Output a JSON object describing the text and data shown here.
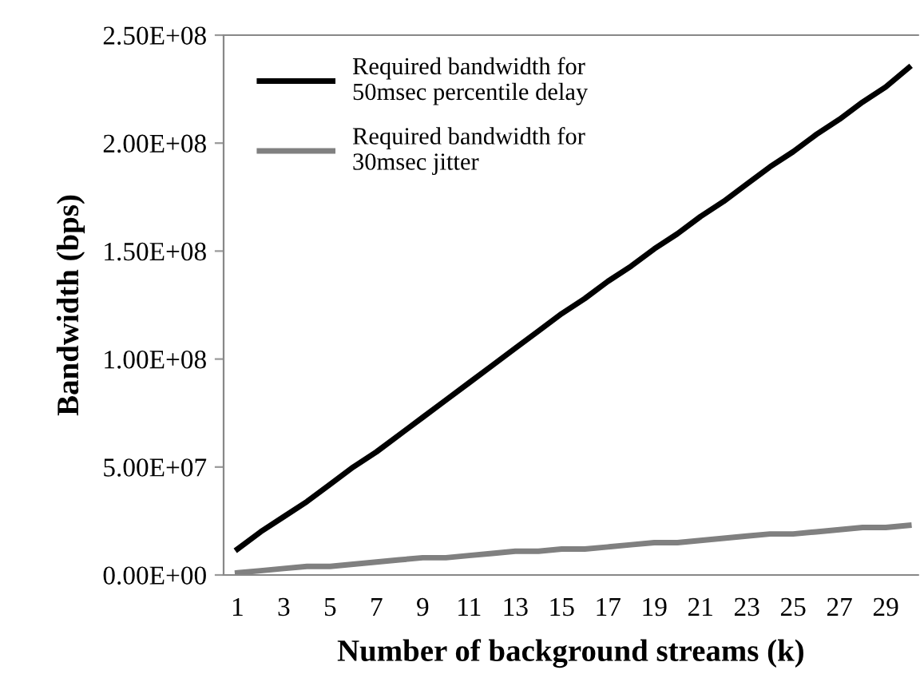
{
  "chart_data": {
    "type": "line",
    "xlabel": "Number of background streams (k)",
    "ylabel": "Bandwidth (bps)",
    "categories": [
      "1",
      null,
      "3",
      null,
      "5",
      null,
      "7",
      null,
      "9",
      null,
      "11",
      null,
      "13",
      null,
      "15",
      null,
      "17",
      null,
      "19",
      null,
      "21",
      null,
      "23",
      null,
      "25",
      null,
      "27",
      null,
      "29",
      null
    ],
    "series": [
      {
        "name": "Required bandwidth for\n50msec percentile delay",
        "color": "#000000",
        "values": [
          12000000,
          20000000,
          27000000,
          34000000,
          42000000,
          50000000,
          57000000,
          65000000,
          73000000,
          81000000,
          89000000,
          97000000,
          105000000,
          113000000,
          121000000,
          128000000,
          136000000,
          143000000,
          151000000,
          158000000,
          166000000,
          173000000,
          181000000,
          189000000,
          196000000,
          204000000,
          211000000,
          219000000,
          226000000,
          235000000
        ]
      },
      {
        "name": "Required bandwidth for\n30msec jitter",
        "color": "#808080",
        "values": [
          1000000,
          2000000,
          3000000,
          4000000,
          4000000,
          5000000,
          6000000,
          7000000,
          8000000,
          8000000,
          9000000,
          10000000,
          11000000,
          11000000,
          12000000,
          12000000,
          13000000,
          14000000,
          15000000,
          15000000,
          16000000,
          17000000,
          18000000,
          19000000,
          19000000,
          20000000,
          21000000,
          22000000,
          22000000,
          23000000
        ]
      }
    ],
    "ylim": [
      0,
      250000000
    ],
    "yticks": [
      {
        "value": 0,
        "label": "0.00E+00"
      },
      {
        "value": 50000000,
        "label": "5.00E+07"
      },
      {
        "value": 100000000,
        "label": "1.00E+08"
      },
      {
        "value": 150000000,
        "label": "1.50E+08"
      },
      {
        "value": 200000000,
        "label": "2.00E+08"
      },
      {
        "value": 250000000,
        "label": "2.50E+08"
      }
    ],
    "grid": false,
    "legend": "top left",
    "marker": "none",
    "line_style": "solid"
  }
}
